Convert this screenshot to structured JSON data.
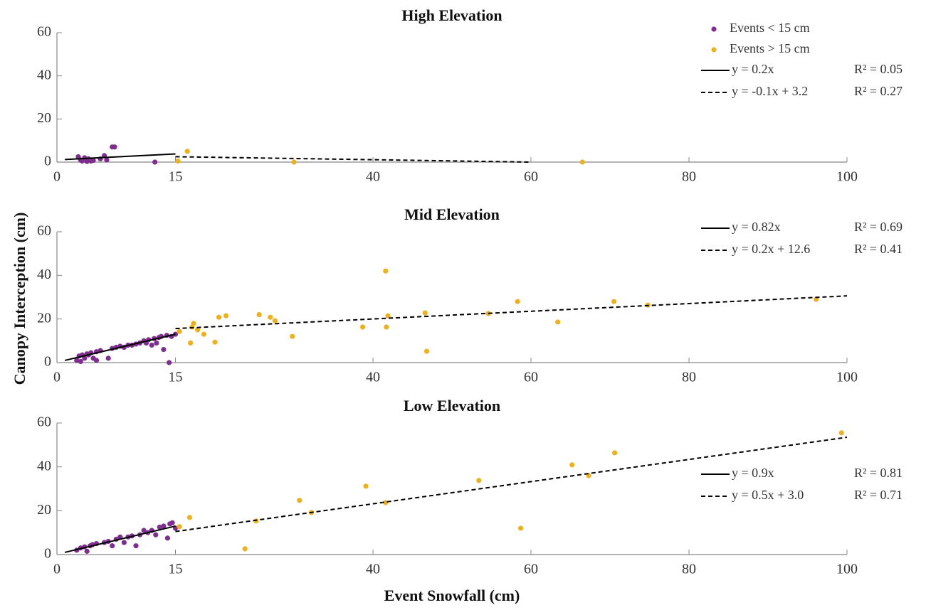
{
  "chart_data": [
    {
      "type": "scatter",
      "title": "High Elevation",
      "xlim": [
        0,
        100
      ],
      "xticks": [
        0,
        15,
        40,
        60,
        80,
        100
      ],
      "ylim": [
        0,
        60
      ],
      "yticks": [
        0,
        20,
        40,
        60
      ],
      "grid": false,
      "legend": "upper right",
      "series": [
        {
          "name": "Events < 15 cm",
          "color": "#7e2f8e",
          "x": [
            2.7,
            3,
            3.2,
            3.5,
            3.8,
            4,
            4.3,
            4.6,
            5.5,
            6,
            6.3,
            7,
            7.3,
            12.4
          ],
          "values": [
            2.5,
            1,
            0.5,
            2,
            0.3,
            1.5,
            0.5,
            0.8,
            1.5,
            3,
            1,
            7,
            7,
            0
          ]
        },
        {
          "name": "Events > 15 cm",
          "color": "#edb120",
          "x": [
            15.3,
            16.5,
            30,
            66.5
          ],
          "values": [
            0.5,
            5,
            0,
            0
          ]
        }
      ],
      "fits": [
        {
          "name": "y = 0.2x",
          "r2": "R² = 0.05",
          "style": "solid",
          "x": [
            1,
            15
          ],
          "values": [
            1.2,
            3.8
          ]
        },
        {
          "name": "y = -0.1x + 3.2",
          "r2": "R² = 0.27",
          "style": "dashed",
          "x": [
            15,
            60
          ],
          "values": [
            2.5,
            0
          ]
        }
      ]
    },
    {
      "type": "scatter",
      "title": "Mid Elevation",
      "ylabel": "Canopy Interception (cm)",
      "xlim": [
        0,
        100
      ],
      "xticks": [
        0,
        15,
        40,
        60,
        80,
        100
      ],
      "ylim": [
        0,
        60
      ],
      "yticks": [
        0,
        20,
        40,
        60
      ],
      "grid": false,
      "legend": "upper right",
      "series": [
        {
          "color": "#7e2f8e",
          "x": [
            2.5,
            2.8,
            3,
            3.2,
            3.5,
            3.8,
            4,
            4.3,
            4.6,
            5,
            5,
            5.5,
            6.5,
            7,
            7.5,
            8,
            8.5,
            9,
            9.5,
            10,
            10.5,
            11,
            11.3,
            11.6,
            12,
            12.3,
            12.6,
            12.9,
            13.2,
            13.5,
            13.9,
            14.2,
            14.5,
            15
          ],
          "values": [
            1,
            3,
            0.5,
            3.5,
            2,
            4,
            3.5,
            4.5,
            2,
            5,
            1,
            5.5,
            2,
            6.5,
            7,
            7.5,
            7,
            8,
            8,
            8.5,
            9,
            10,
            9,
            10.5,
            8,
            11,
            9,
            11.5,
            12,
            6,
            12.5,
            0,
            12,
            13
          ]
        },
        {
          "color": "#edb120",
          "x": [
            15.5,
            16.9,
            17.1,
            17.3,
            17.8,
            18.6,
            20,
            20.5,
            21.4,
            25.6,
            27,
            27.6,
            29.8,
            38.7,
            41.6,
            41.7,
            41.9,
            46.6,
            46.8,
            54.6,
            58.3,
            63.4,
            70.5,
            74.8,
            96.1
          ],
          "values": [
            14.3,
            9,
            16.3,
            18,
            15,
            13,
            9.4,
            20.8,
            21.5,
            22,
            20.8,
            19.2,
            12,
            16.3,
            42,
            16.3,
            21.5,
            22.8,
            5.2,
            22.5,
            28,
            18.6,
            28,
            26.4,
            29
          ]
        }
      ],
      "fits": [
        {
          "name": "y = 0.82x",
          "r2": "R² = 0.69",
          "style": "solid",
          "x": [
            1,
            15
          ],
          "values": [
            1,
            13
          ]
        },
        {
          "name": "y = 0.2x + 12.6",
          "r2": "R² = 0.41",
          "style": "dashed",
          "x": [
            15,
            100
          ],
          "values": [
            15.6,
            30.6
          ]
        }
      ]
    },
    {
      "type": "scatter",
      "title": "Low Elevation",
      "xlabel": "Event Snowfall (cm)",
      "xlim": [
        0,
        100
      ],
      "xticks": [
        0,
        15,
        40,
        60,
        80,
        100
      ],
      "ylim": [
        0,
        60
      ],
      "yticks": [
        0,
        20,
        40,
        60
      ],
      "grid": false,
      "legend": "center right",
      "series": [
        {
          "color": "#7e2f8e",
          "x": [
            2.5,
            3,
            3.5,
            3.8,
            4.2,
            4.5,
            5,
            6,
            6.5,
            7,
            7.5,
            8,
            8.5,
            9,
            9.5,
            10,
            10.5,
            11,
            11.5,
            12,
            12.5,
            13,
            13.5,
            14,
            14.3,
            14.6,
            15
          ],
          "values": [
            2,
            3,
            3.5,
            1.5,
            4,
            4.5,
            5,
            5.5,
            6,
            4,
            7,
            8,
            5.5,
            8,
            8.5,
            4,
            9,
            11,
            10,
            11,
            9,
            12.5,
            13,
            7.5,
            14,
            14.5,
            12
          ]
        },
        {
          "color": "#edb120",
          "x": [
            15.5,
            16.8,
            23.8,
            25.2,
            30.7,
            32.2,
            39.1,
            41.6,
            53.4,
            58.7,
            65.2,
            67.3,
            70.6,
            99.3
          ],
          "values": [
            12.7,
            16.9,
            2.6,
            15.3,
            24.7,
            19.2,
            31.2,
            23.7,
            33.8,
            12,
            40.9,
            36,
            46.4,
            55.5
          ]
        }
      ],
      "fits": [
        {
          "name": "y = 0.9x",
          "r2": "R² = 0.81",
          "style": "solid",
          "x": [
            1,
            15
          ],
          "values": [
            1,
            13
          ]
        },
        {
          "name": "y = 0.5x + 3.0",
          "r2": "R² = 0.71",
          "style": "dashed",
          "x": [
            15,
            100
          ],
          "values": [
            10.5,
            53.5
          ]
        }
      ]
    }
  ]
}
